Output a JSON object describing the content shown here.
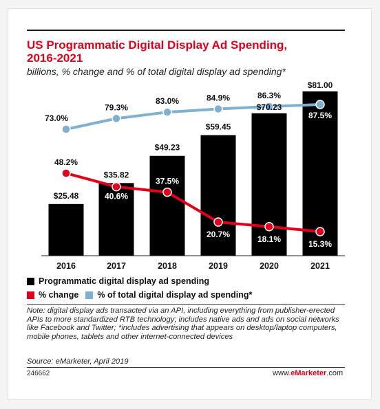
{
  "colors": {
    "bar": "#000000",
    "pct_change": "#e0001b",
    "pct_total": "#7fb0d0",
    "title": "#e0001b"
  },
  "header": {
    "title_line1": "US Programmatic Digital Display Ad Spending,",
    "title_line2": "2016-2021",
    "subtitle": "billions, % change and % of total digital display ad spending*"
  },
  "chart_data": {
    "type": "bar",
    "categories": [
      "2016",
      "2017",
      "2018",
      "2019",
      "2020",
      "2021"
    ],
    "bar_series": {
      "name": "Programmatic digital display ad spending",
      "values": [
        25.48,
        35.82,
        49.23,
        59.45,
        70.23,
        81.0
      ],
      "labels": [
        "$25.48",
        "$35.82",
        "$49.23",
        "$59.45",
        "$70.23",
        "$81.00"
      ]
    },
    "line_series": [
      {
        "name": "% change",
        "values": [
          48.2,
          40.6,
          37.5,
          20.7,
          18.1,
          15.3
        ],
        "labels": [
          "48.2%",
          "40.6%",
          "37.5%",
          "20.7%",
          "18.1%",
          "15.3%"
        ]
      },
      {
        "name": "% of total digital display ad spending*",
        "values": [
          73.0,
          79.3,
          83.0,
          84.9,
          86.3,
          87.5
        ],
        "labels": [
          "73.0%",
          "79.3%",
          "83.0%",
          "84.9%",
          "86.3%",
          "87.5%"
        ]
      }
    ],
    "legend": {
      "bar": "Programmatic digital display ad spending",
      "pct_change": "% change",
      "pct_total": "% of total digital display ad spending*",
      "placement": "bottom"
    },
    "grid": false
  },
  "footer": {
    "note": "Note: digital display ads transacted via an API, including everything from publisher-erected APIs to more standardized RTB technology; includes native ads and ads on social networks like Facebook and Twitter; *includes advertising that appears on desktop/laptop computers, mobile phones, tablets and other internet-connected devices",
    "source": "Source: eMarketer, April 2019",
    "chart_id": "246662",
    "brand_pre": "www.",
    "brand_mid": "eMarketer",
    "brand_post": ".com"
  }
}
